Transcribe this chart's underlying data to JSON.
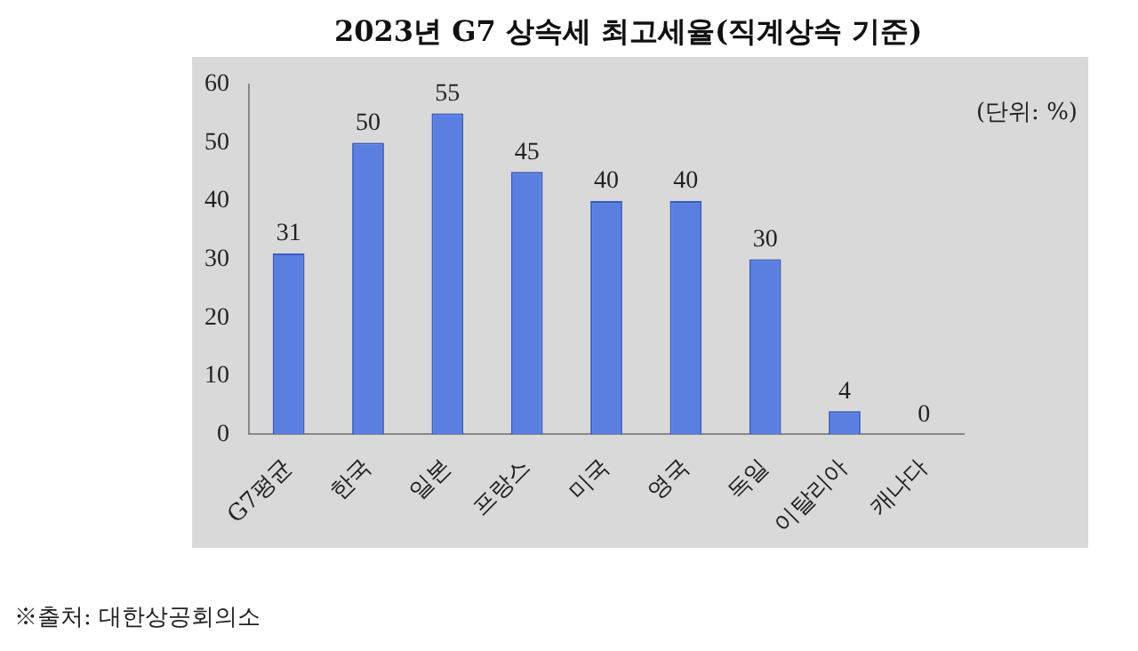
{
  "chart_data": {
    "type": "bar",
    "title": "2023년 G7 상속세 최고세율(직계상속 기준)",
    "categories": [
      "G7평균",
      "한국",
      "일본",
      "프랑스",
      "미국",
      "영국",
      "독일",
      "이탈리아",
      "캐나다"
    ],
    "values": [
      31,
      50,
      55,
      45,
      40,
      40,
      30,
      4,
      0
    ],
    "color": "#5b7fe0",
    "ylim": [
      0,
      60
    ],
    "yticks": [
      0,
      10,
      20,
      30,
      40,
      50,
      60
    ],
    "data_labels": true,
    "annotations": [
      "(단위: %)",
      "※출처: 대한상공회의소"
    ]
  }
}
